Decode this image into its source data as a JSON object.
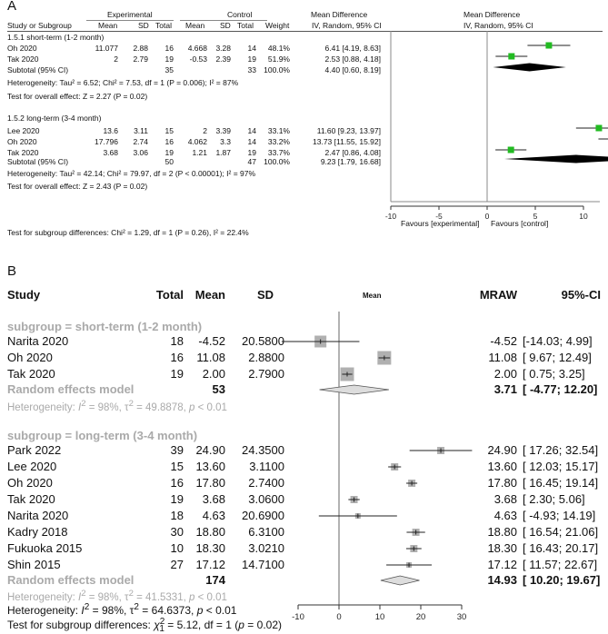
{
  "panel_a": {
    "label": "A",
    "header": {
      "experimental": "Experimental",
      "control": "Control",
      "mean_difference": "Mean Difference",
      "mean_difference_right": "Mean Difference",
      "study": "Study or Subgroup",
      "mean": "Mean",
      "sd": "SD",
      "total": "Total",
      "mean2": "Mean",
      "sd2": "SD",
      "total2": "Total",
      "weight": "Weight",
      "method": "IV, Random, 95% CI",
      "method_right": "IV, Random, 95% CI"
    },
    "groups": [
      {
        "title": "1.5.1 short-term (1-2 month)",
        "rows": [
          {
            "study": "Oh 2020",
            "m1": "11.077",
            "sd1": "2.88",
            "n1": "16",
            "m2": "4.668",
            "sd2": "3.28",
            "n2": "14",
            "w": "48.1%",
            "ci": "6.41 [4.19, 8.63]"
          },
          {
            "study": "Tak 2020",
            "m1": "2",
            "sd1": "2.79",
            "n1": "19",
            "m2": "-0.53",
            "sd2": "2.39",
            "n2": "19",
            "w": "51.9%",
            "ci": "2.53 [0.88, 4.18]"
          }
        ],
        "subtotal": {
          "label": "Subtotal (95% CI)",
          "n1": "35",
          "n2": "33",
          "w": "100.0%",
          "ci": "4.40 [0.60, 8.19]"
        },
        "het": "Heterogeneity: Tau² = 6.52; Chi² = 7.53, df = 1 (P = 0.006); I² = 87%",
        "test": "Test for overall effect: Z = 2.27 (P = 0.02)"
      },
      {
        "title": "1.5.2 long-term (3-4 month)",
        "rows": [
          {
            "study": "Lee 2020",
            "m1": "13.6",
            "sd1": "3.11",
            "n1": "15",
            "m2": "2",
            "sd2": "3.39",
            "n2": "14",
            "w": "33.1%",
            "ci": "11.60 [9.23, 13.97]"
          },
          {
            "study": "Oh 2020",
            "m1": "17.796",
            "sd1": "2.74",
            "n1": "16",
            "m2": "4.062",
            "sd2": "3.3",
            "n2": "14",
            "w": "33.2%",
            "ci": "13.73 [11.55, 15.92]"
          },
          {
            "study": "Tak 2020",
            "m1": "3.68",
            "sd1": "3.06",
            "n1": "19",
            "m2": "1.21",
            "sd2": "1.87",
            "n2": "19",
            "w": "33.7%",
            "ci": "2.47 [0.86, 4.08]"
          }
        ],
        "subtotal": {
          "label": "Subtotal (95% CI)",
          "n1": "50",
          "n2": "47",
          "w": "100.0%",
          "ci": "9.23 [1.79, 16.68]"
        },
        "het": "Heterogeneity: Tau² = 42.14; Chi² = 79.97, df = 2 (P < 0.00001); I² = 97%",
        "test": "Test for overall effect: Z = 2.43 (P = 0.02)"
      }
    ],
    "subgroup_test": "Test for subgroup differences: Chi² = 1.29, df = 1 (P = 0.26), I² = 22.4%",
    "favours_left": "Favours [experimental]",
    "favours_right": "Favours [control]"
  },
  "panel_b": {
    "label": "B",
    "header": {
      "study": "Study",
      "total": "Total",
      "mean": "Mean",
      "sd": "SD",
      "plot": "Mean",
      "mraw": "MRAW",
      "ci": "95%-CI"
    },
    "groups": [
      {
        "title": "subgroup = short-term (1-2 month)",
        "rows": [
          {
            "study": "Narita 2020",
            "total": "18",
            "mean": "-4.52",
            "sd": "20.5800",
            "mraw": "-4.52",
            "ci": "[-14.03;  4.99]"
          },
          {
            "study": "Oh 2020",
            "total": "16",
            "mean": "11.08",
            "sd": "2.8800",
            "mraw": "11.08",
            "ci": "[ 9.67; 12.49]"
          },
          {
            "study": "Tak 2020",
            "total": "19",
            "mean": "2.00",
            "sd": "2.7900",
            "mraw": "2.00",
            "ci": "[ 0.75;  3.25]"
          }
        ],
        "model": {
          "label": "Random effects model",
          "total": "53",
          "mraw": "3.71",
          "ci": "[ -4.77; 12.20]"
        },
        "het_prefix": "Heterogeneity: ",
        "het_i2": "I",
        "het_rest": " = 98%, τ",
        "het_tail": " = 49.8878, ",
        "het_p": "p",
        "het_end": " < 0.01"
      },
      {
        "title": "subgroup = long-term (3-4 month)",
        "rows": [
          {
            "study": "Park 2022",
            "total": "39",
            "mean": "24.90",
            "sd": "24.3500",
            "mraw": "24.90",
            "ci": "[ 17.26; 32.54]"
          },
          {
            "study": "Lee 2020",
            "total": "15",
            "mean": "13.60",
            "sd": "3.1100",
            "mraw": "13.60",
            "ci": "[ 12.03; 15.17]"
          },
          {
            "study": "Oh 2020",
            "total": "16",
            "mean": "17.80",
            "sd": "2.7400",
            "mraw": "17.80",
            "ci": "[ 16.45; 19.14]"
          },
          {
            "study": "Tak 2020",
            "total": "19",
            "mean": "3.68",
            "sd": "3.0600",
            "mraw": "3.68",
            "ci": "[  2.30;  5.06]"
          },
          {
            "study": "Narita 2020",
            "total": "18",
            "mean": "4.63",
            "sd": "20.6900",
            "mraw": "4.63",
            "ci": "[ -4.93; 14.19]"
          },
          {
            "study": "Kadry 2018",
            "total": "30",
            "mean": "18.80",
            "sd": "6.3100",
            "mraw": "18.80",
            "ci": "[ 16.54; 21.06]"
          },
          {
            "study": "Fukuoka 2015",
            "total": "10",
            "mean": "18.30",
            "sd": "3.0210",
            "mraw": "18.30",
            "ci": "[ 16.43; 20.17]"
          },
          {
            "study": "Shin 2015",
            "total": "27",
            "mean": "17.12",
            "sd": "14.7100",
            "mraw": "17.12",
            "ci": "[ 11.57; 22.67]"
          }
        ],
        "model": {
          "label": "Random effects model",
          "total": "174",
          "mraw": "14.93",
          "ci": "[ 10.20; 19.67]"
        },
        "het_prefix": "Heterogeneity: ",
        "het_i2": "I",
        "het_rest": " = 98%, τ",
        "het_tail": " = 41.5331, ",
        "het_p": "p",
        "het_end": " < 0.01"
      }
    ],
    "overall_het": {
      "prefix": "Heterogeneity: ",
      "i": "I",
      "rest": " = 98%, τ",
      "tail": " = 64.6373, ",
      "p": "p",
      "end": " < 0.01"
    },
    "subgroup_test": {
      "prefix": "Test for subgroup differences: ",
      "chi": "χ",
      "rest": " = 5.12, df = 1 (",
      "p": "p",
      "end": " = 0.02)"
    }
  },
  "chart_data": [
    {
      "type": "forest",
      "panel": "A",
      "xlim": [
        -10,
        10
      ],
      "ticks": [
        "-10",
        "-5",
        "0",
        "5",
        "10"
      ],
      "series": [
        {
          "name": "Oh 2020",
          "group": "1.5.1 short-term (1-2 month)",
          "est": 6.41,
          "lo": 4.19,
          "hi": 8.63,
          "weight": 48.1
        },
        {
          "name": "Tak 2020",
          "group": "1.5.1 short-term (1-2 month)",
          "est": 2.53,
          "lo": 0.88,
          "hi": 4.18,
          "weight": 51.9
        },
        {
          "name": "Subtotal (95% CI)",
          "group": "1.5.1 short-term (1-2 month)",
          "est": 4.4,
          "lo": 0.6,
          "hi": 8.19,
          "diamond": true
        },
        {
          "name": "Lee 2020",
          "group": "1.5.2 long-term (3-4 month)",
          "est": 11.6,
          "lo": 9.23,
          "hi": 13.97,
          "weight": 33.1
        },
        {
          "name": "Oh 2020",
          "group": "1.5.2 long-term (3-4 month)",
          "est": 13.73,
          "lo": 11.55,
          "hi": 15.92,
          "weight": 33.2
        },
        {
          "name": "Tak 2020",
          "group": "1.5.2 long-term (3-4 month)",
          "est": 2.47,
          "lo": 0.86,
          "hi": 4.08,
          "weight": 33.7
        },
        {
          "name": "Subtotal (95% CI)",
          "group": "1.5.2 long-term (3-4 month)",
          "est": 9.23,
          "lo": 1.79,
          "hi": 16.68,
          "diamond": true
        }
      ],
      "colors": {
        "square": "#22bb22",
        "diamond": "#000000"
      }
    },
    {
      "type": "forest",
      "panel": "B",
      "xlim": [
        -10,
        30
      ],
      "ticks": [
        "-10",
        "0",
        "10",
        "20",
        "30"
      ],
      "series": [
        {
          "name": "Narita 2020",
          "group": "short-term",
          "est": -4.52,
          "lo": -14.03,
          "hi": 4.99,
          "size": 3
        },
        {
          "name": "Oh 2020",
          "group": "short-term",
          "est": 11.08,
          "lo": 9.67,
          "hi": 12.49,
          "size": 4
        },
        {
          "name": "Tak 2020",
          "group": "short-term",
          "est": 2.0,
          "lo": 0.75,
          "hi": 3.25,
          "size": 4
        },
        {
          "name": "Random effects model",
          "group": "short-term",
          "est": 3.71,
          "lo": -4.77,
          "hi": 12.2,
          "diamond": true
        },
        {
          "name": "Park 2022",
          "group": "long-term",
          "est": 24.9,
          "lo": 17.26,
          "hi": 32.54,
          "size": 2
        },
        {
          "name": "Lee 2020",
          "group": "long-term",
          "est": 13.6,
          "lo": 12.03,
          "hi": 15.17,
          "size": 2
        },
        {
          "name": "Oh 2020",
          "group": "long-term",
          "est": 17.8,
          "lo": 16.45,
          "hi": 19.14,
          "size": 2
        },
        {
          "name": "Tak 2020",
          "group": "long-term",
          "est": 3.68,
          "lo": 2.3,
          "hi": 5.06,
          "size": 2
        },
        {
          "name": "Narita 2020",
          "group": "long-term",
          "est": 4.63,
          "lo": -4.93,
          "hi": 14.19,
          "size": 1
        },
        {
          "name": "Kadry 2018",
          "group": "long-term",
          "est": 18.8,
          "lo": 16.54,
          "hi": 21.06,
          "size": 2
        },
        {
          "name": "Fukuoka 2015",
          "group": "long-term",
          "est": 18.3,
          "lo": 16.43,
          "hi": 20.17,
          "size": 2
        },
        {
          "name": "Shin 2015",
          "group": "long-term",
          "est": 17.12,
          "lo": 11.57,
          "hi": 22.67,
          "size": 1
        },
        {
          "name": "Random effects model",
          "group": "long-term",
          "est": 14.93,
          "lo": 10.2,
          "hi": 19.67,
          "diamond": true
        }
      ],
      "colors": {
        "square": "#b0b0b0",
        "diamond": "#dddddd"
      }
    }
  ]
}
